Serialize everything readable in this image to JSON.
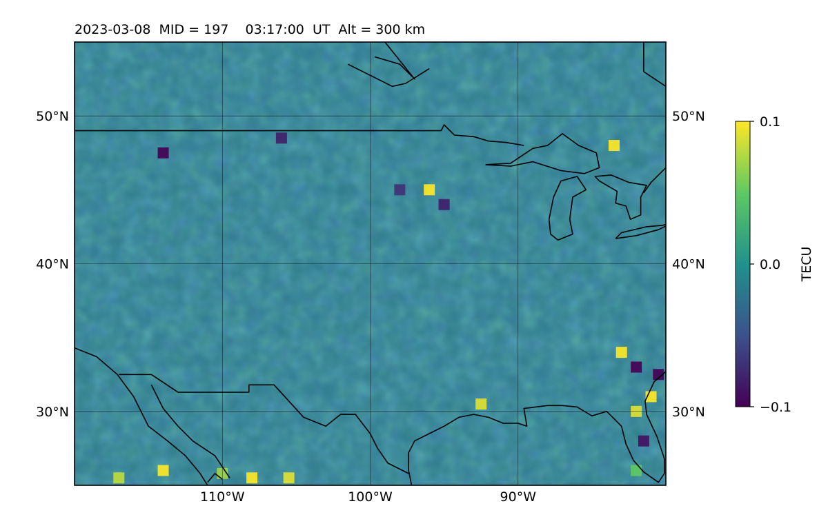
{
  "chart_data": {
    "type": "heatmap",
    "title": "2023-03-08  MID = 197    03:17:00  UT  Alt = 300 km",
    "map": {
      "lon_range": [
        -120,
        -80
      ],
      "lat_range": [
        25,
        55
      ],
      "gridlines": true
    },
    "x_ticks": [
      {
        "value": -110,
        "label": "110°W"
      },
      {
        "value": -100,
        "label": "100°W"
      },
      {
        "value": -90,
        "label": "90°W"
      }
    ],
    "y_ticks": [
      {
        "value": 50,
        "label": "50°N"
      },
      {
        "value": 40,
        "label": "40°N"
      },
      {
        "value": 30,
        "label": "30°N"
      }
    ],
    "colorbar": {
      "label": "TECU",
      "colormap": "viridis",
      "range": [
        -0.1,
        0.1
      ],
      "ticks": [
        {
          "value": 0.1,
          "label": "0.1"
        },
        {
          "value": 0.0,
          "label": "0.0"
        },
        {
          "value": -0.1,
          "label": "−0.1"
        }
      ],
      "colors": [
        "#440154",
        "#3b528b",
        "#21918c",
        "#5ec962",
        "#fde725"
      ]
    },
    "hotspots": [
      {
        "lon": -114,
        "lat": 47.5,
        "value": -0.1
      },
      {
        "lon": -106,
        "lat": 48.5,
        "value": -0.08
      },
      {
        "lon": -96,
        "lat": 45,
        "value": 0.1
      },
      {
        "lon": -95,
        "lat": 44,
        "value": -0.08
      },
      {
        "lon": -98,
        "lat": 45,
        "value": -0.07
      },
      {
        "lon": -83.5,
        "lat": 48,
        "value": 0.1
      },
      {
        "lon": -83,
        "lat": 34,
        "value": 0.1
      },
      {
        "lon": -82,
        "lat": 33,
        "value": -0.1
      },
      {
        "lon": -81,
        "lat": 31,
        "value": 0.1
      },
      {
        "lon": -81.5,
        "lat": 28,
        "value": -0.09
      },
      {
        "lon": -82,
        "lat": 30,
        "value": 0.09
      },
      {
        "lon": -80.5,
        "lat": 32.5,
        "value": -0.1
      },
      {
        "lon": -114,
        "lat": 26,
        "value": 0.1
      },
      {
        "lon": -108,
        "lat": 25.5,
        "value": 0.1
      },
      {
        "lon": -105.5,
        "lat": 25.5,
        "value": 0.09
      },
      {
        "lon": -117,
        "lat": 25.5,
        "value": 0.08
      },
      {
        "lon": -92.5,
        "lat": 30.5,
        "value": 0.09
      },
      {
        "lon": -82,
        "lat": 26,
        "value": 0.05
      },
      {
        "lon": -110,
        "lat": 25.8,
        "value": 0.07
      }
    ],
    "coastlines": [
      [
        [
          -120,
          34.3
        ],
        [
          -118.5,
          33.7
        ],
        [
          -117.1,
          32.5
        ],
        [
          -116,
          31
        ],
        [
          -115,
          29
        ],
        [
          -113.7,
          28
        ],
        [
          -112.5,
          27
        ],
        [
          -111.5,
          25.8
        ],
        [
          -111,
          25
        ]
      ],
      [
        [
          -117,
          32.5
        ],
        [
          -114.8,
          32.5
        ],
        [
          -113,
          31.3
        ],
        [
          -111,
          31.3
        ],
        [
          -108.2,
          31.3
        ],
        [
          -108.2,
          31.8
        ],
        [
          -106.5,
          31.8
        ],
        [
          -104.5,
          29.6
        ],
        [
          -103,
          29
        ],
        [
          -102,
          29.8
        ],
        [
          -101,
          29.8
        ],
        [
          -100,
          28.5
        ],
        [
          -99.5,
          27.5
        ],
        [
          -98.8,
          26.5
        ],
        [
          -97.4,
          25.8
        ]
      ],
      [
        [
          -114.8,
          31.8
        ],
        [
          -114,
          30.2
        ],
        [
          -113,
          29
        ],
        [
          -112,
          28
        ],
        [
          -110.5,
          27
        ],
        [
          -109.5,
          25.5
        ]
      ],
      [
        [
          -97.2,
          25
        ],
        [
          -97.4,
          26
        ],
        [
          -97.4,
          27.2
        ],
        [
          -97,
          28
        ],
        [
          -96,
          28.5
        ],
        [
          -95,
          29
        ],
        [
          -94,
          29.6
        ],
        [
          -93,
          29.8
        ],
        [
          -92,
          29.6
        ],
        [
          -91,
          29.2
        ],
        [
          -90,
          29.2
        ],
        [
          -89.4,
          29
        ],
        [
          -89.6,
          30.2
        ],
        [
          -88,
          30.4
        ],
        [
          -87,
          30.4
        ],
        [
          -86,
          30.3
        ],
        [
          -85,
          29.7
        ],
        [
          -84,
          30
        ],
        [
          -83,
          29
        ],
        [
          -82.7,
          27.8
        ],
        [
          -82.2,
          26.7
        ],
        [
          -81.5,
          25.9
        ],
        [
          -80.5,
          25.2
        ],
        [
          -80.1,
          25.8
        ],
        [
          -80.1,
          26.8
        ],
        [
          -80.6,
          28.3
        ],
        [
          -81.3,
          29.8
        ],
        [
          -81.4,
          30.7
        ],
        [
          -80.8,
          32
        ],
        [
          -80,
          32.7
        ]
      ],
      [
        [
          -111,
          25.2
        ],
        [
          -110.5,
          25.8
        ],
        [
          -110,
          25.4
        ]
      ]
    ],
    "borders": [
      [
        [
          -120,
          49
        ],
        [
          -95.2,
          49
        ],
        [
          -95,
          49.4
        ],
        [
          -94.3,
          48.7
        ],
        [
          -93,
          48.6
        ],
        [
          -92,
          48.3
        ],
        [
          -90.8,
          48.2
        ],
        [
          -89.6,
          48
        ]
      ]
    ],
    "great_lakes": [
      [
        [
          -92.2,
          46.7
        ],
        [
          -90.5,
          46.8
        ],
        [
          -89,
          47.8
        ],
        [
          -88,
          48
        ],
        [
          -87,
          48.8
        ],
        [
          -85.9,
          48
        ],
        [
          -84.7,
          47.5
        ],
        [
          -84.5,
          46.5
        ],
        [
          -85.5,
          46.1
        ],
        [
          -87.1,
          46.3
        ],
        [
          -89,
          46.9
        ],
        [
          -90.5,
          46.6
        ],
        [
          -92.2,
          46.7
        ]
      ],
      [
        [
          -87.8,
          42
        ],
        [
          -87.9,
          43
        ],
        [
          -87.6,
          44.5
        ],
        [
          -87.1,
          45.6
        ],
        [
          -86,
          45.9
        ],
        [
          -85.4,
          45
        ],
        [
          -86.3,
          44.5
        ],
        [
          -86.5,
          43
        ],
        [
          -86.3,
          42
        ],
        [
          -87.3,
          41.6
        ],
        [
          -87.8,
          42
        ]
      ],
      [
        [
          -84.8,
          45.9
        ],
        [
          -83.7,
          46
        ],
        [
          -82.5,
          45.5
        ],
        [
          -81.3,
          45.3
        ],
        [
          -81.7,
          44.5
        ],
        [
          -81.7,
          43.3
        ],
        [
          -82.4,
          43
        ],
        [
          -82.7,
          43.9
        ],
        [
          -83.4,
          44.1
        ],
        [
          -83.3,
          44.9
        ],
        [
          -84.5,
          45.6
        ],
        [
          -84.8,
          45.9
        ]
      ],
      [
        [
          -83.4,
          41.7
        ],
        [
          -82,
          41.9
        ],
        [
          -80.5,
          42.3
        ],
        [
          -79.5,
          42.8
        ],
        [
          -80.2,
          42.6
        ],
        [
          -81.3,
          42.5
        ],
        [
          -83,
          42.1
        ],
        [
          -83.4,
          41.7
        ]
      ],
      [
        [
          -80,
          43.5
        ],
        [
          -79.5,
          43.2
        ]
      ],
      [
        [
          -80,
          46.5
        ],
        [
          -81,
          45.5
        ],
        [
          -81.5,
          44.8
        ]
      ]
    ],
    "hudson_bay": [
      [
        [
          -99,
          55
        ],
        [
          -97,
          52.5
        ],
        [
          -98,
          53.5
        ],
        [
          -99.7,
          54
        ]
      ],
      [
        [
          -101.5,
          53.5
        ],
        [
          -98.5,
          52
        ],
        [
          -97.6,
          52.2
        ],
        [
          -96,
          53.2
        ]
      ]
    ],
    "east_coast_upper": [
      [
        [
          -81.5,
          55
        ],
        [
          -81.5,
          53
        ],
        [
          -80,
          52
        ],
        [
          -79.5,
          51
        ]
      ]
    ],
    "great_lakes_text": []
  }
}
